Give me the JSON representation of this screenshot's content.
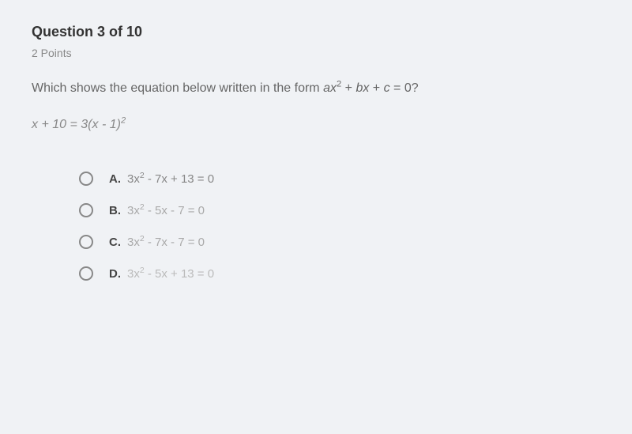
{
  "header": {
    "question_number": "Question 3 of 10",
    "points": "2 Points"
  },
  "question": {
    "prompt_prefix": "Which shows the equation below written in the form ",
    "form_a": "ax",
    "form_exp1": "2",
    "form_plus1": " + ",
    "form_b": "bx",
    "form_plus2": " + ",
    "form_c": "c",
    "form_eq": " = 0?",
    "equation_lhs": "x + 10 = 3(",
    "equation_var": "x",
    "equation_minus": " - 1)",
    "equation_exp": "2"
  },
  "options": [
    {
      "label": "A.",
      "prefix": "3",
      "var": "x",
      "exp": "2",
      "rest": " - 7x + 13 = 0"
    },
    {
      "label": "B.",
      "prefix": "3",
      "var": "x",
      "exp": "2",
      "rest": " - 5x - 7 = 0"
    },
    {
      "label": "C.",
      "prefix": "3",
      "var": "x",
      "exp": "2",
      "rest": " - 7x - 7 = 0"
    },
    {
      "label": "D.",
      "prefix": "3",
      "var": "x",
      "exp": "2",
      "rest": " - 5x + 13 = 0"
    }
  ],
  "colors": {
    "background": "#f0f2f5",
    "heading": "#333333",
    "subtext": "#888888",
    "body": "#666666",
    "option_label": "#444444"
  }
}
